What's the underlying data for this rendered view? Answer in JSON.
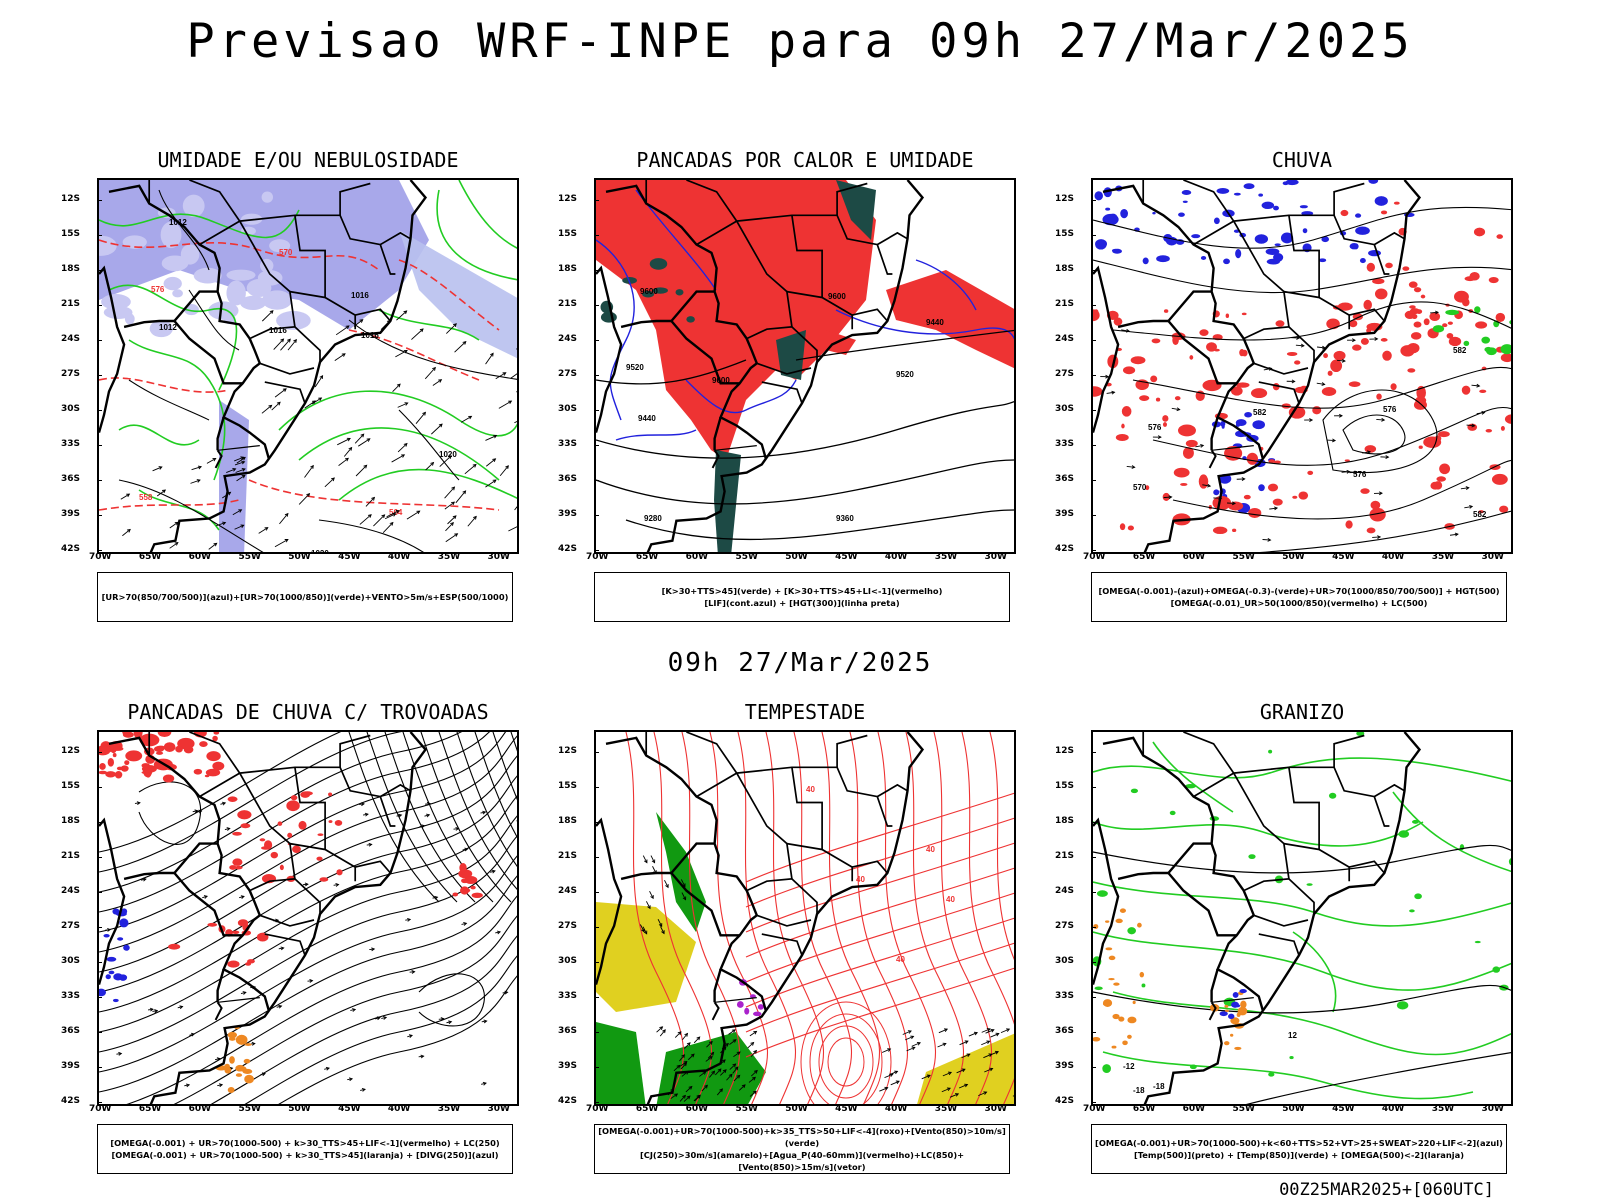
{
  "title": "Previsao WRF-INPE  para 09h 27/Mar/2025",
  "subtitle_time": "09h 27/Mar/2025",
  "run_stamp": "00Z25MAR2025+[060UTC]",
  "axes": {
    "lat_labels": [
      "12S",
      "15S",
      "18S",
      "21S",
      "24S",
      "27S",
      "30S",
      "33S",
      "36S",
      "39S",
      "42S"
    ],
    "lon_labels": [
      "70W",
      "65W",
      "60W",
      "55W",
      "50W",
      "45W",
      "40W",
      "35W",
      "30W"
    ]
  },
  "panels": [
    {
      "title": "UMIDADE E/OU NEBULOSIDADE",
      "legend": [
        "[UR>70(850/700/500)](azul)+[UR>70(1000/850)](verde)+VENTO>5m/s+ESP(500/1000)"
      ],
      "contour_labels": [
        "1012",
        "1012",
        "1016",
        "1016",
        "1016",
        "1020",
        "1020",
        "576",
        "570",
        "564",
        "558"
      ]
    },
    {
      "title": "PANCADAS POR CALOR E UMIDADE",
      "legend": [
        "[K>30+TTS>45](verde) + [K>30+TTS>45+LI<-1](vermelho)",
        "[LIF](cont.azul) + [HGT(300)](linha preta)"
      ],
      "contour_labels": [
        "9600",
        "9600",
        "9600",
        "9520",
        "9520",
        "9440",
        "9440",
        "9280",
        "9360"
      ]
    },
    {
      "title": "CHUVA",
      "legend": [
        "[OMEGA(-0.001)-(azul)+OMEGA(-0.3)-(verde)+UR>70(1000/850/700/500)] + HGT(500)",
        "[OMEGA(-0.01)_UR>50(1000/850)(vermelho) + LC(500)"
      ],
      "contour_labels": [
        "582",
        "582",
        "576",
        "576",
        "570",
        "576",
        "582"
      ]
    },
    {
      "title": "PANCADAS DE CHUVA C/ TROVOADAS",
      "legend": [
        "[OMEGA(-0.001) + UR>70(1000-500) + k>30_TTS>45+LIF<-1](vermelho) + LC(250)",
        "[OMEGA(-0.001) + UR>70(1000-500) + k>30_TTS>45](laranja) + [DIVG(250)](azul)"
      ],
      "contour_labels": []
    },
    {
      "title": "TEMPESTADE",
      "legend": [
        "[OMEGA(-0.001)+UR>70(1000-500)+k>35_TTS>50+LIF<-4](roxo)+[Vento(850)>10m/s](verde)",
        "[CJ(250)>30m/s](amarelo)+[Agua_P(40-60mm)](vermelho)+LC(850)+[Vento(850)>15m/s](vetor)"
      ],
      "contour_labels": [
        "40",
        "40",
        "40",
        "40",
        "40"
      ]
    },
    {
      "title": "GRANIZO",
      "legend": [
        "[OMEGA(-0.001)+UR>70(1000-500)+k<60+TTS>52+VT>25+SWEAT>220+LIF<-2](azul)",
        "[Temp(500)](preto) + [Temp(850)](verde) + [OMEGA(500)<-2](laranja)"
      ],
      "contour_labels": [
        "-12",
        "-18",
        "-18",
        "12"
      ]
    }
  ],
  "colors": {
    "blue_fill": "#9999e6",
    "blue_dark": "#2222dd",
    "green": "#22cc22",
    "green_dark": "#119911",
    "red": "#ee3333",
    "dark_teal": "#1d4a45",
    "orange": "#ee8822",
    "yellow": "#e0d020",
    "purple": "#aa22cc"
  }
}
